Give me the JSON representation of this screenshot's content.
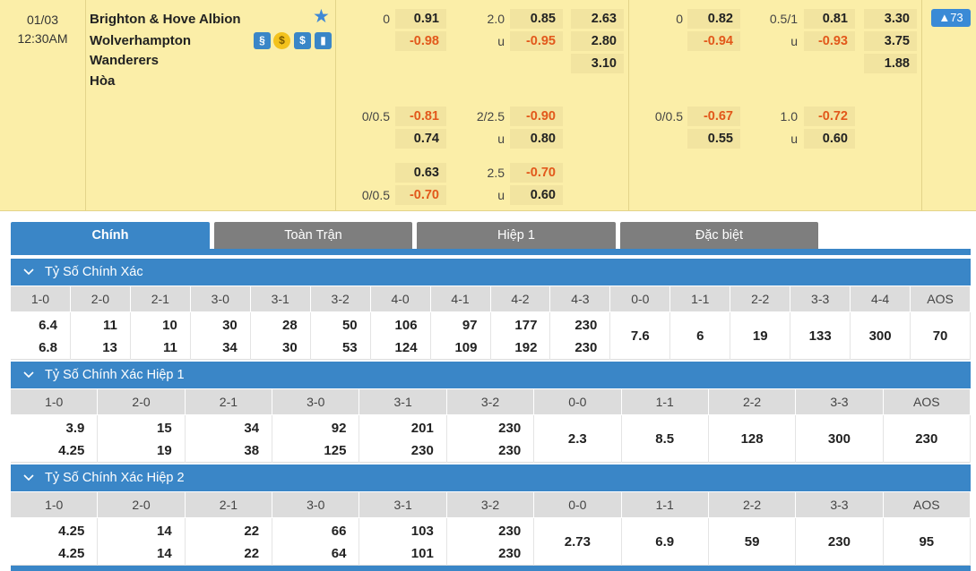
{
  "match": {
    "date": "01/03",
    "time": "12:30AM",
    "home": "Brighton & Hove Albion",
    "away_line1": "Wolverhampton",
    "away_line2": "Wanderers",
    "draw": "Hòa",
    "more_count": "▲73",
    "icon_labels": [
      "§",
      "$",
      "$",
      "▮"
    ],
    "colors": {
      "background": "#fbeea8",
      "accent": "#3a86c7",
      "negative": "#e2581b"
    }
  },
  "odds_ft": {
    "row1": {
      "hcap": "0",
      "h_home": "0.91",
      "h_away": "-0.98",
      "ou_line": "2.0",
      "ou_over": "0.85",
      "ou_u": "u",
      "ou_under": "-0.95",
      "x_home": "2.63",
      "x_away": "2.80",
      "x_draw": "3.10"
    },
    "row2": {
      "hcap": "0/0.5",
      "h_home": "-0.81",
      "h_away": "0.74",
      "ou_line": "2/2.5",
      "ou_over": "-0.90",
      "ou_u": "u",
      "ou_under": "0.80"
    },
    "row3": {
      "hcap": "0/0.5",
      "h_home": "0.63",
      "h_away": "-0.70",
      "ou_line": "2.5",
      "ou_over": "-0.70",
      "ou_u": "u",
      "ou_under": "0.60"
    }
  },
  "odds_h1": {
    "row1": {
      "hcap": "0",
      "h_home": "0.82",
      "h_away": "-0.94",
      "ou_line": "0.5/1",
      "ou_over": "0.81",
      "ou_u": "u",
      "ou_under": "-0.93",
      "x_home": "3.30",
      "x_away": "3.75",
      "x_draw": "1.88"
    },
    "row2": {
      "hcap": "0/0.5",
      "h_home": "-0.67",
      "h_away": "0.55",
      "ou_line": "1.0",
      "ou_over": "-0.72",
      "ou_u": "u",
      "ou_under": "0.60"
    }
  },
  "tabs": [
    "Chính",
    "Toàn Trận",
    "Hiệp 1",
    "Đặc biệt"
  ],
  "sections": [
    {
      "title": "Tỷ Số Chính Xác",
      "headers": [
        "1-0",
        "2-0",
        "2-1",
        "3-0",
        "3-1",
        "3-2",
        "4-0",
        "4-1",
        "4-2",
        "4-3",
        "0-0",
        "1-1",
        "2-2",
        "3-3",
        "4-4",
        "AOS"
      ],
      "top": [
        "6.4",
        "11",
        "10",
        "30",
        "28",
        "50",
        "106",
        "97",
        "177",
        "230"
      ],
      "bottom": [
        "6.8",
        "13",
        "11",
        "34",
        "30",
        "53",
        "124",
        "109",
        "192",
        "230"
      ],
      "single": [
        "7.6",
        "6",
        "19",
        "133",
        "300",
        "70"
      ]
    },
    {
      "title": "Tỷ Số Chính Xác Hiệp 1",
      "headers": [
        "1-0",
        "2-0",
        "2-1",
        "3-0",
        "3-1",
        "3-2",
        "0-0",
        "1-1",
        "2-2",
        "3-3",
        "AOS"
      ],
      "top": [
        "3.9",
        "15",
        "34",
        "92",
        "201",
        "230"
      ],
      "bottom": [
        "4.25",
        "19",
        "38",
        "125",
        "230",
        "230"
      ],
      "single": [
        "2.3",
        "8.5",
        "128",
        "300",
        "230"
      ]
    },
    {
      "title": "Tỷ Số Chính Xác Hiệp 2",
      "headers": [
        "1-0",
        "2-0",
        "2-1",
        "3-0",
        "3-1",
        "3-2",
        "0-0",
        "1-1",
        "2-2",
        "3-3",
        "AOS"
      ],
      "top": [
        "4.25",
        "14",
        "22",
        "66",
        "103",
        "230"
      ],
      "bottom": [
        "4.25",
        "14",
        "22",
        "64",
        "101",
        "230"
      ],
      "single": [
        "2.73",
        "6.9",
        "59",
        "230",
        "95"
      ]
    }
  ]
}
